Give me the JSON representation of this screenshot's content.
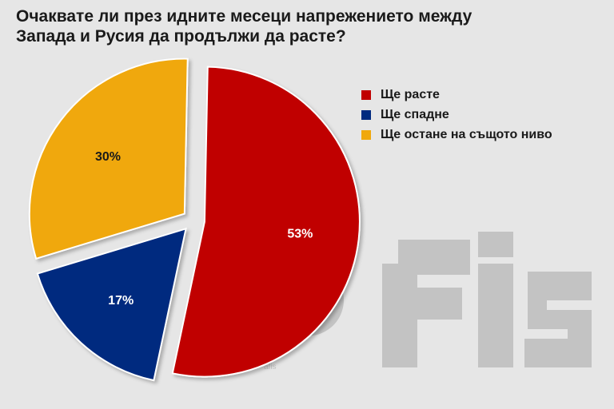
{
  "chart_data": {
    "type": "pie",
    "title_lines": [
      "Очаквате ли през идните месеци напрежението между",
      "Запада и Русия да продължи да расте?"
    ],
    "slices": [
      {
        "label": "Ще расте",
        "value": 53,
        "value_label": "53%",
        "color": "#c00000"
      },
      {
        "label": "Ще спадне",
        "value": 17,
        "value_label": "17%",
        "color": "#002a7f"
      },
      {
        "label": "Ще остане на същото ниво",
        "value": 30,
        "value_label": "30%",
        "color": "#f0a80c"
      }
    ],
    "legend_position": "top-right",
    "exploded": true
  },
  "watermark": {
    "text": "afis"
  }
}
